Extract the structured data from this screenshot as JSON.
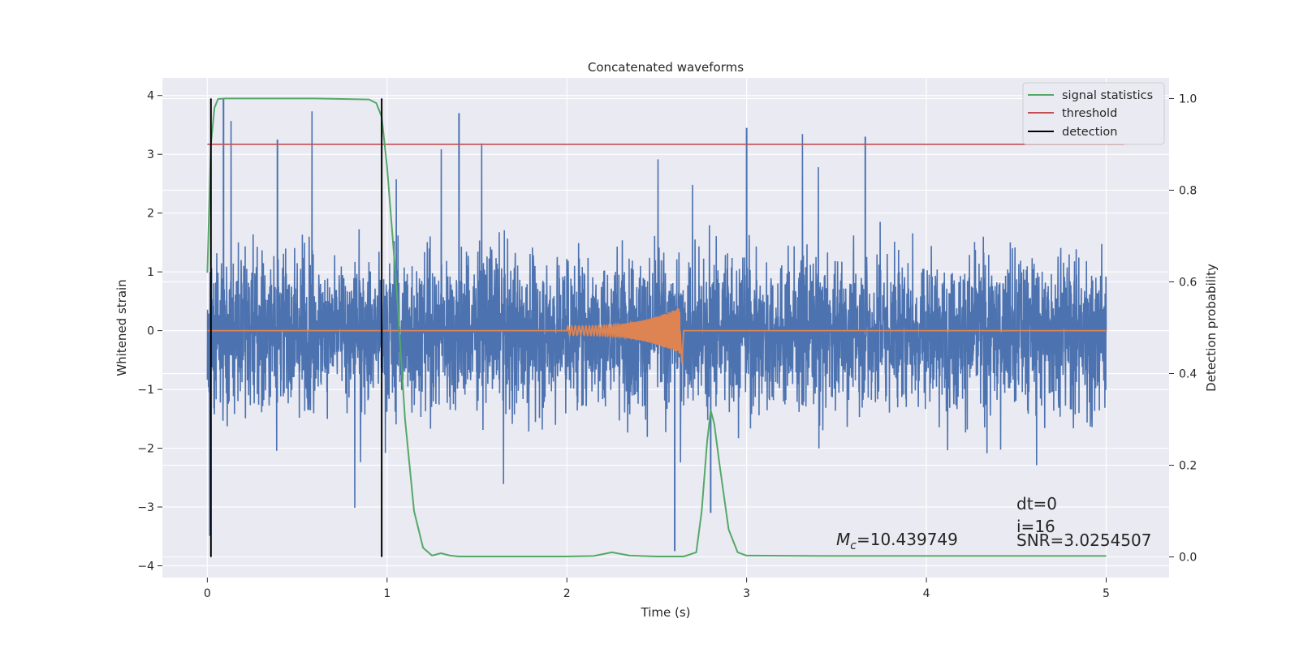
{
  "chart_data": {
    "type": "line",
    "title": "Concatenated waveforms",
    "xlabel": "Time (s)",
    "ylabel_left": "Whitened strain",
    "ylabel_right": "Detection probability",
    "xlim": [
      -0.25,
      5.35
    ],
    "ylim_left": [
      -4.2,
      4.3
    ],
    "ylim_right": [
      -0.045,
      1.045
    ],
    "grid": true,
    "legend_position": "top-right",
    "x_ticks": [
      "0",
      "1",
      "2",
      "3",
      "4",
      "5"
    ],
    "y_ticks_left": [
      "4",
      "3",
      "2",
      "1",
      "0",
      "−1",
      "−2",
      "−3",
      "−4"
    ],
    "y_ticks_right": [
      "1.0",
      "0.8",
      "0.6",
      "0.4",
      "0.2",
      "0.0"
    ],
    "legend": [
      {
        "label": "signal statistics",
        "color": "#55a868"
      },
      {
        "label": "threshold",
        "color": "#c44e52"
      },
      {
        "label": "detection",
        "color": "#000000"
      }
    ],
    "series": [
      {
        "name": "signal statistics",
        "axis": "right",
        "color": "#55a868",
        "x": [
          0.0,
          0.02,
          0.04,
          0.06,
          0.1,
          0.3,
          0.6,
          0.9,
          0.94,
          0.97,
          1.0,
          1.05,
          1.1,
          1.15,
          1.2,
          1.25,
          1.3,
          1.35,
          1.4,
          1.6,
          2.0,
          2.15,
          2.25,
          2.35,
          2.5,
          2.65,
          2.72,
          2.75,
          2.78,
          2.8,
          2.82,
          2.85,
          2.9,
          2.95,
          3.0,
          3.5,
          4.0,
          4.5,
          5.0
        ],
        "y": [
          0.62,
          0.9,
          0.98,
          0.999,
          1.0,
          1.0,
          1.0,
          0.998,
          0.99,
          0.96,
          0.85,
          0.6,
          0.3,
          0.1,
          0.02,
          0.003,
          0.008,
          0.003,
          0.001,
          0.001,
          0.001,
          0.002,
          0.01,
          0.003,
          0.001,
          0.001,
          0.01,
          0.1,
          0.25,
          0.32,
          0.29,
          0.2,
          0.06,
          0.01,
          0.003,
          0.002,
          0.002,
          0.002,
          0.002
        ]
      },
      {
        "name": "threshold",
        "axis": "right",
        "color": "#c44e52",
        "x": [
          0.0,
          5.1
        ],
        "y": [
          0.9,
          0.9
        ]
      },
      {
        "name": "whitened strain (noise + signal)",
        "axis": "left",
        "color": "#4c72b0",
        "x_range": [
          0.0,
          5.0
        ],
        "typical_amplitude": 1.0,
        "peak_max": 3.95,
        "peak_min": -3.75
      },
      {
        "name": "injected waveform",
        "axis": "left",
        "color": "#dd8452",
        "x_range": [
          2.0,
          2.63
        ],
        "peak_amplitude": 0.4
      }
    ],
    "detections": [
      0.02,
      0.97
    ],
    "annotations": [
      {
        "text": "dt=0"
      },
      {
        "text": "i=16"
      },
      {
        "text": "SNR=3.0254507"
      }
    ],
    "mc_annotation": {
      "symbol": "M",
      "subscript": "c",
      "value": "=10.439749"
    }
  }
}
